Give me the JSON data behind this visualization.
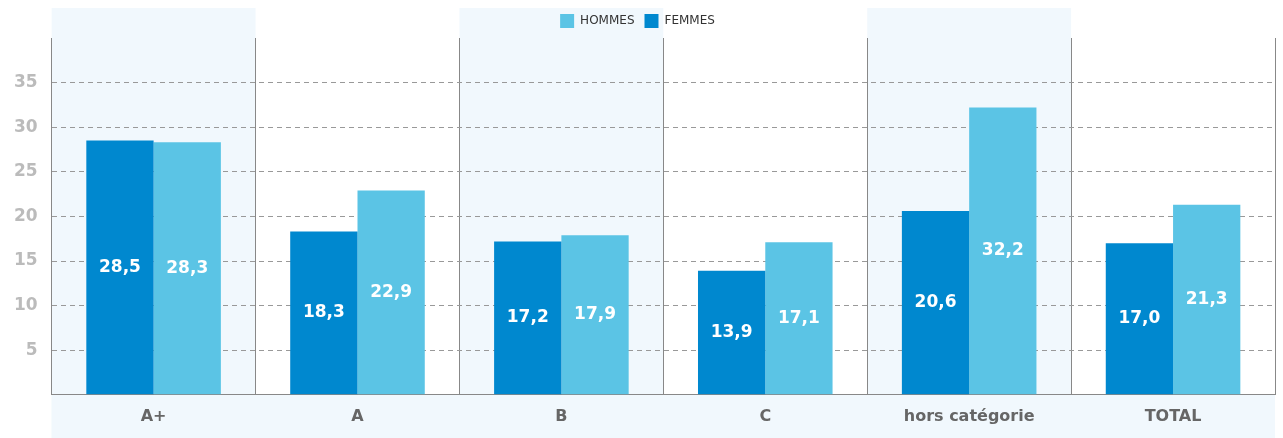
{
  "chart_data": {
    "type": "bar",
    "categories": [
      "A+",
      "A",
      "B",
      "C",
      "hors catégorie",
      "TOTAL"
    ],
    "series": [
      {
        "name": "FEMMES",
        "color": "#0088cf",
        "values": [
          28.5,
          18.3,
          17.2,
          13.9,
          20.6,
          17.0
        ],
        "value_labels": [
          "28,5",
          "18,3",
          "17,2",
          "13,9",
          "20,6",
          "17,0"
        ]
      },
      {
        "name": "HOMMES",
        "color": "#5bc4e5",
        "values": [
          28.3,
          22.9,
          17.9,
          17.1,
          32.2,
          21.3
        ],
        "value_labels": [
          "28,3",
          "22,9",
          "17,9",
          "17,1",
          "32,2",
          "21,3"
        ]
      }
    ],
    "ylim": [
      0,
      40
    ],
    "yticks": [
      {
        "value": 0,
        "label": null
      },
      5,
      10,
      15,
      20,
      25,
      30,
      35
    ],
    "grid": true,
    "legend": "top",
    "data_labels": true
  }
}
